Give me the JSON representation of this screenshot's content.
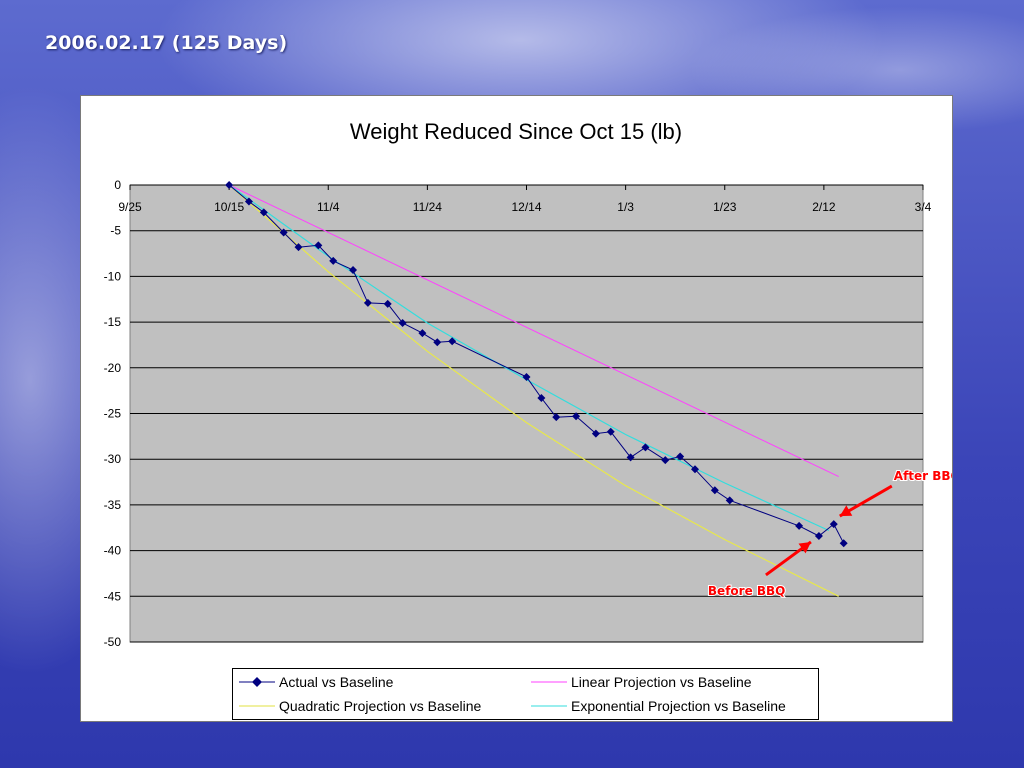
{
  "slide": {
    "title": "2006.02.17 (125 Days)"
  },
  "colors": {
    "actual": "#000080",
    "linear": "#ff40ff",
    "quadratic": "#ffff66",
    "exponential": "#33dddd",
    "plot_bg": "#c0c0c0",
    "annotation": "#ff0000"
  },
  "chart_data": {
    "type": "line",
    "title": "Weight Reduced Since Oct 15 (lb)",
    "xlabel": "",
    "ylabel": "",
    "x_ticks": [
      "9/25",
      "10/15",
      "11/4",
      "11/24",
      "12/14",
      "1/3",
      "1/23",
      "2/12",
      "3/4"
    ],
    "xlim": [
      "2005-09-25",
      "2006-03-04"
    ],
    "ylim": [
      -50,
      0
    ],
    "y_ticks": [
      0,
      -5,
      -10,
      -15,
      -20,
      -25,
      -30,
      -35,
      -40,
      -45,
      -50
    ],
    "x_axis_position": "top (at y = 0)",
    "grid": "horizontal",
    "legend_position": "bottom",
    "series": [
      {
        "name": "Actual vs Baseline",
        "color": "#000080",
        "marker": "diamond",
        "points": [
          [
            "2005-10-15",
            0
          ],
          [
            "2005-10-19",
            -1.8
          ],
          [
            "2005-10-22",
            -3
          ],
          [
            "2005-10-26",
            -5.2
          ],
          [
            "2005-10-29",
            -6.8
          ],
          [
            "2005-11-02",
            -6.6
          ],
          [
            "2005-11-05",
            -8.3
          ],
          [
            "2005-11-09",
            -9.3
          ],
          [
            "2005-11-12",
            -12.9
          ],
          [
            "2005-11-16",
            -13
          ],
          [
            "2005-11-19",
            -15.1
          ],
          [
            "2005-11-23",
            -16.2
          ],
          [
            "2005-11-26",
            -17.2
          ],
          [
            "2005-11-29",
            -17.1
          ],
          [
            "2005-12-14",
            -21
          ],
          [
            "2005-12-17",
            -23.3
          ],
          [
            "2005-12-20",
            -25.4
          ],
          [
            "2005-12-24",
            -25.3
          ],
          [
            "2005-12-28",
            -27.2
          ],
          [
            "2005-12-31",
            -27
          ],
          [
            "2006-01-04",
            -29.8
          ],
          [
            "2006-01-07",
            -28.7
          ],
          [
            "2006-01-11",
            -30.1
          ],
          [
            "2006-01-14",
            -29.7
          ],
          [
            "2006-01-17",
            -31.1
          ],
          [
            "2006-01-21",
            -33.4
          ],
          [
            "2006-01-24",
            -34.5
          ],
          [
            "2006-02-07",
            -37.3
          ],
          [
            "2006-02-11",
            -38.4
          ],
          [
            "2006-02-14",
            -37.1
          ],
          [
            "2006-02-16",
            -39.2
          ]
        ]
      },
      {
        "name": "Linear Projection vs Baseline",
        "color": "#ff40ff",
        "points": [
          [
            "2005-10-15",
            0
          ],
          [
            "2006-02-15",
            -31.9
          ]
        ]
      },
      {
        "name": "Quadratic Projection vs Baseline",
        "color": "#ffff66",
        "points": [
          [
            "2005-10-15",
            0
          ],
          [
            "2005-11-04",
            -9.5
          ],
          [
            "2005-11-24",
            -18.2
          ],
          [
            "2005-12-14",
            -26
          ],
          [
            "2006-01-03",
            -32.9
          ],
          [
            "2006-01-23",
            -38.8
          ],
          [
            "2006-02-15",
            -45
          ]
        ]
      },
      {
        "name": "Exponential Projection vs Baseline",
        "color": "#33dddd",
        "points": [
          [
            "2005-10-15",
            0
          ],
          [
            "2005-11-04",
            -7.8
          ],
          [
            "2005-11-24",
            -15.1
          ],
          [
            "2005-12-14",
            -21.3
          ],
          [
            "2006-01-03",
            -27.3
          ],
          [
            "2006-01-23",
            -32.6
          ],
          [
            "2006-02-13",
            -37.8
          ]
        ]
      }
    ],
    "annotations": [
      {
        "text": "After BBQ",
        "target": [
          "2006-02-14",
          -37.1
        ]
      },
      {
        "text": "Before BBQ",
        "target": [
          "2006-02-11",
          -38.4
        ]
      }
    ]
  }
}
